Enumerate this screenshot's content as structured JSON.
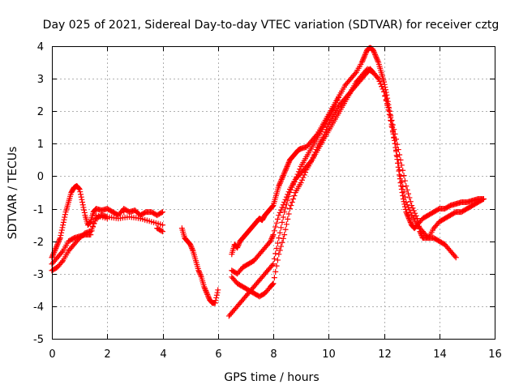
{
  "chart_data": {
    "type": "scatter",
    "title": "Day 025 of 2021, Sidereal Day-to-day VTEC variation (SDTVAR) for receiver cztg",
    "xlabel": "GPS time / hours",
    "ylabel": "SDTVAR / TECUs",
    "xlim": [
      0,
      16
    ],
    "ylim": [
      -5,
      4
    ],
    "xticks": [
      0,
      2,
      4,
      6,
      8,
      10,
      12,
      14,
      16
    ],
    "yticks": [
      -5,
      -4,
      -3,
      -2,
      -1,
      0,
      1,
      2,
      3,
      4
    ],
    "grid": true,
    "marker": "+",
    "marker_color": "#ff0000",
    "series": [
      {
        "x": [
          0.0,
          0.1,
          0.2,
          0.3,
          0.4,
          0.5,
          0.6,
          0.7,
          0.8,
          0.9,
          1.0,
          1.1,
          1.2,
          1.3,
          1.4,
          1.5,
          1.6,
          1.8,
          2.0,
          2.2,
          2.4,
          2.6,
          2.8,
          3.0,
          3.2,
          3.4,
          3.6,
          3.8,
          4.0,
          4.7,
          4.8,
          4.9,
          5.0,
          5.1,
          5.2,
          5.3,
          5.4,
          5.5,
          5.6,
          5.7,
          5.8,
          5.9,
          6.0,
          6.5,
          6.6,
          6.7,
          6.8,
          6.9,
          7.0,
          7.1,
          7.2,
          7.3,
          7.4,
          7.5,
          7.6,
          7.7,
          7.8,
          7.9,
          8.0,
          8.1,
          8.2,
          8.3,
          8.4,
          8.5,
          8.6,
          8.7,
          8.8,
          8.9,
          9.0,
          9.2,
          9.4,
          9.6,
          9.8,
          10.0,
          10.2,
          10.4,
          10.6,
          10.8,
          11.0,
          11.2,
          11.3,
          11.4,
          11.5,
          11.6,
          11.7,
          11.8,
          11.9,
          12.0,
          12.1,
          12.2,
          12.3,
          12.4,
          12.5,
          12.6,
          12.7,
          12.8,
          12.9,
          13.0,
          13.1,
          13.2,
          13.4,
          13.6,
          13.8,
          14.0,
          14.2,
          14.4,
          14.6,
          14.8,
          15.0,
          15.2,
          15.4,
          15.6
        ],
        "y": [
          -2.5,
          -2.3,
          -2.1,
          -1.9,
          -1.5,
          -1.1,
          -0.8,
          -0.5,
          -0.35,
          -0.3,
          -0.4,
          -0.8,
          -1.2,
          -1.5,
          -1.4,
          -1.1,
          -1.0,
          -1.05,
          -1.0,
          -1.1,
          -1.2,
          -1.0,
          -1.1,
          -1.05,
          -1.2,
          -1.1,
          -1.1,
          -1.2,
          -1.1,
          -1.6,
          -1.9,
          -2.0,
          -2.1,
          -2.3,
          -2.6,
          -2.9,
          -3.1,
          -3.4,
          -3.6,
          -3.8,
          -3.9,
          -3.9,
          -3.5,
          -2.4,
          -2.1,
          -2.2,
          -2.0,
          -1.9,
          -1.8,
          -1.7,
          -1.6,
          -1.5,
          -1.4,
          -1.3,
          -1.35,
          -1.2,
          -1.1,
          -1.0,
          -0.9,
          -0.6,
          -0.3,
          -0.1,
          0.1,
          0.3,
          0.5,
          0.6,
          0.7,
          0.8,
          0.85,
          0.9,
          1.1,
          1.3,
          1.6,
          1.9,
          2.2,
          2.5,
          2.8,
          3.0,
          3.2,
          3.5,
          3.7,
          3.9,
          3.95,
          3.9,
          3.7,
          3.5,
          3.2,
          2.9,
          2.5,
          2.0,
          1.5,
          1.0,
          0.4,
          -0.2,
          -0.7,
          -1.1,
          -1.3,
          -1.5,
          -1.6,
          -1.5,
          -1.3,
          -1.2,
          -1.1,
          -1.0,
          -1.0,
          -0.9,
          -0.85,
          -0.8,
          -0.8,
          -0.75,
          -0.7,
          -0.7
        ]
      },
      {
        "x": [
          0.0,
          0.2,
          0.4,
          0.6,
          0.8,
          1.0,
          1.2,
          1.4,
          1.6,
          1.8,
          2.0,
          2.4,
          2.8,
          3.2,
          3.6,
          4.0,
          6.5,
          6.7,
          6.9,
          7.1,
          7.3,
          7.5,
          7.7,
          7.9,
          8.0,
          8.2,
          8.4,
          8.6,
          8.8,
          9.0,
          9.2,
          9.4,
          9.6,
          9.8,
          10.0,
          10.2,
          10.4,
          10.6,
          10.8,
          11.0,
          11.2,
          11.4,
          11.5,
          11.6,
          11.8,
          12.0,
          12.2,
          12.4,
          12.6,
          12.8,
          13.0,
          13.2,
          13.4,
          13.6,
          13.8,
          14.0,
          14.2,
          14.4,
          14.6,
          14.8,
          15.0,
          15.2,
          15.4,
          15.6
        ],
        "y": [
          -2.9,
          -2.8,
          -2.6,
          -2.3,
          -2.1,
          -1.9,
          -1.75,
          -1.7,
          -1.3,
          -1.2,
          -1.25,
          -1.3,
          -1.25,
          -1.3,
          -1.4,
          -1.5,
          -3.1,
          -3.3,
          -3.4,
          -3.5,
          -3.6,
          -3.7,
          -3.6,
          -3.4,
          -3.3,
          -2.4,
          -1.8,
          -1.0,
          -0.5,
          -0.2,
          0.2,
          0.5,
          0.9,
          1.2,
          1.6,
          1.9,
          2.2,
          2.4,
          2.6,
          2.8,
          3.0,
          3.2,
          3.3,
          3.2,
          3.0,
          2.6,
          1.9,
          1.0,
          0.0,
          -0.8,
          -1.2,
          -1.5,
          -1.7,
          -1.9,
          -1.6,
          -1.4,
          -1.3,
          -1.2,
          -1.1,
          -1.1,
          -1.0,
          -0.9,
          -0.8,
          -0.7
        ]
      },
      {
        "x": [
          0.0,
          0.2,
          0.4,
          0.6,
          0.8,
          1.0,
          1.2,
          1.4,
          1.6,
          2.0,
          2.6,
          3.2,
          3.8,
          4.0,
          6.5,
          6.7,
          6.9,
          7.1,
          7.3,
          7.5,
          7.7,
          7.9,
          8.0,
          8.2,
          8.4,
          8.6,
          8.8,
          9.0,
          9.2,
          9.4,
          9.6,
          9.8,
          10.0,
          10.2,
          10.4,
          10.6,
          10.8,
          11.0,
          11.2,
          11.4,
          11.6,
          11.8,
          12.0,
          12.2,
          12.4,
          12.6,
          12.8,
          13.0,
          13.2,
          13.3,
          13.4,
          13.6,
          13.8,
          14.0,
          14.2,
          14.4,
          14.6
        ],
        "y": [
          -2.7,
          -2.5,
          -2.3,
          -2.0,
          -1.9,
          -1.85,
          -1.8,
          -1.8,
          -1.2,
          -1.3,
          -1.1,
          -1.3,
          -1.6,
          -1.7,
          -2.9,
          -3.0,
          -2.8,
          -2.7,
          -2.6,
          -2.4,
          -2.2,
          -2.0,
          -1.8,
          -1.2,
          -0.8,
          -0.4,
          -0.1,
          0.1,
          0.3,
          0.5,
          0.8,
          1.1,
          1.4,
          1.7,
          2.0,
          2.3,
          2.6,
          2.9,
          3.1,
          3.3,
          3.2,
          3.0,
          2.6,
          2.0,
          1.3,
          0.5,
          -0.3,
          -0.9,
          -1.3,
          -1.7,
          -1.9,
          -1.9,
          -1.9,
          -2.0,
          -2.1,
          -2.3,
          -2.5
        ]
      },
      {
        "x": [
          6.4,
          6.6,
          6.8,
          7.0,
          7.2,
          7.4,
          7.6,
          7.8,
          8.0,
          8.2,
          8.4,
          8.6,
          8.8,
          9.0,
          9.2,
          9.4,
          9.6,
          9.8,
          10.0,
          10.2,
          10.4
        ],
        "y": [
          -4.3,
          -4.1,
          -3.9,
          -3.7,
          -3.5,
          -3.3,
          -3.1,
          -2.9,
          -2.7,
          -1.9,
          -1.1,
          -0.5,
          -0.1,
          0.3,
          0.6,
          0.9,
          1.2,
          1.5,
          1.8,
          2.1,
          2.5
        ]
      }
    ]
  }
}
